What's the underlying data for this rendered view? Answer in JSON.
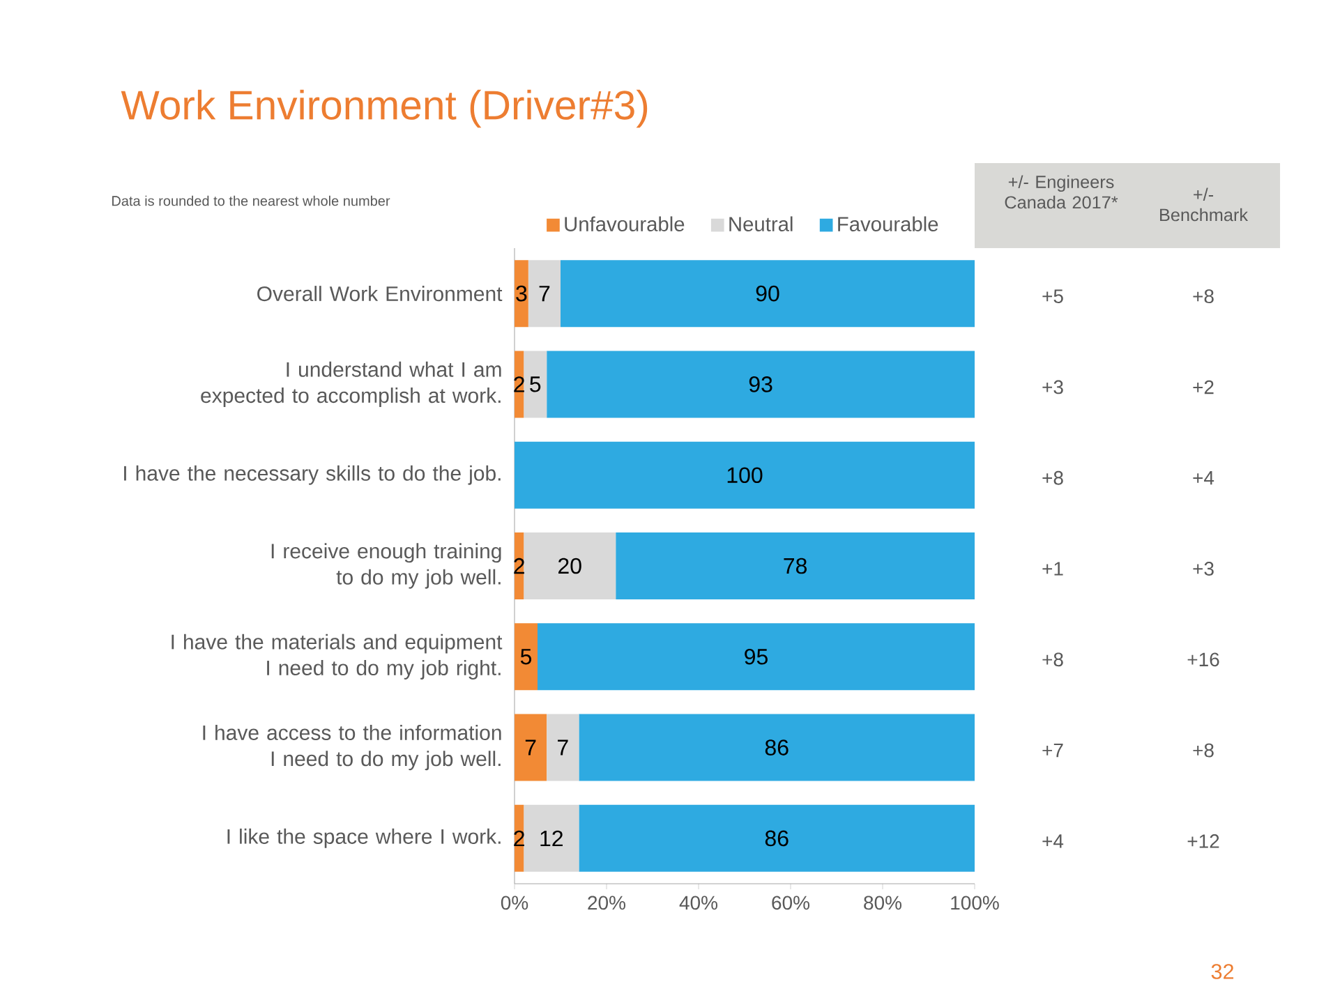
{
  "chart_data": {
    "type": "bar",
    "orientation": "horizontal",
    "stacked": true,
    "title": "Work Environment (Driver#3)",
    "categories": [
      "Overall Work Environment",
      "I understand what I am expected to accomplish at work.",
      "I have the necessary skills to do the job.",
      "I receive enough training to do my job well.",
      "I have the materials and equipment I need to do my job right.",
      "I have access to the information I need to do my job well.",
      "I like the space where I work."
    ],
    "series": [
      {
        "name": "Unfavourable",
        "color": "#f28a35",
        "values": [
          3,
          2,
          0,
          2,
          5,
          7,
          2
        ],
        "value_labels": [
          "3",
          "2",
          null,
          "2",
          "5",
          "7",
          "2"
        ]
      },
      {
        "name": "Neutral",
        "color": "#d9d9d9",
        "values": [
          7,
          5,
          0,
          20,
          0,
          7,
          12
        ],
        "value_labels": [
          "7",
          "5",
          null,
          "20",
          null,
          "7",
          "12"
        ]
      },
      {
        "name": "Favourable",
        "color": "#2eaae1",
        "values": [
          90,
          93,
          100,
          78,
          95,
          86,
          86
        ],
        "value_labels": [
          "90",
          "93",
          "100",
          "78",
          "95",
          "86",
          "86"
        ]
      }
    ],
    "xlim": [
      0,
      100
    ],
    "xticks": [
      {
        "value": 0,
        "label": "0%"
      },
      {
        "value": 20,
        "label": "20%"
      },
      {
        "value": 40,
        "label": "40%"
      },
      {
        "value": 60,
        "label": "60%"
      },
      {
        "value": 80,
        "label": "80%"
      },
      {
        "value": 100,
        "label": "100%"
      }
    ],
    "legend": "top",
    "grid": false,
    "annotations": [
      "Data is rounded to the nearest whole number",
      "+/- Engineers Canada 2017*",
      "+/- Benchmark",
      "+5",
      "+8",
      "+3",
      "+2",
      "+8",
      "+4",
      "+1",
      "+3",
      "+8",
      "+16",
      "+7",
      "+8",
      "+4",
      "+12",
      "32"
    ]
  }
}
